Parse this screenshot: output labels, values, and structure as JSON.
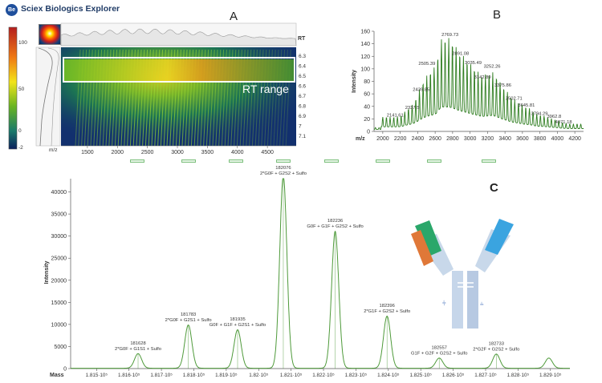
{
  "app": {
    "title": "Sciex Biologics Explorer",
    "logo_text": "Be"
  },
  "panels": {
    "a": "A",
    "b": "B",
    "c": "C"
  },
  "heatmap": {
    "color_scale_ticks": [
      "100",
      "50",
      "0",
      "-2"
    ],
    "rt_header": "RT",
    "mz_header": "m/z",
    "x_ticks": [
      "1500",
      "2000",
      "2500",
      "3000",
      "3500",
      "4000",
      "4500"
    ],
    "x_tick_values": [
      1500,
      2000,
      2500,
      3000,
      3500,
      4000,
      4500
    ],
    "x_range": [
      1060,
      4980
    ],
    "rt_ticks": [
      "6.3",
      "6.4",
      "6.5",
      "6.6",
      "6.7",
      "6.8",
      "6.9",
      "7",
      "7.1"
    ],
    "rt_range_label": "RT range"
  },
  "chart_data": [
    {
      "type": "line",
      "panel": "B",
      "title": "",
      "xlabel": "m/z",
      "ylabel": "Intensity",
      "xlim": [
        1900,
        4300
      ],
      "ylim": [
        0,
        160
      ],
      "x_ticks": [
        2000,
        2200,
        2400,
        2600,
        2800,
        3000,
        3200,
        3400,
        3600,
        3800,
        4000,
        4200
      ],
      "y_ticks": [
        0,
        20,
        40,
        60,
        80,
        100,
        120,
        140,
        160
      ],
      "color": "#2e7d1f",
      "labeled_peaks": [
        {
          "label": "2141.61",
          "x": 2141.61,
          "y": 21
        },
        {
          "label": "2337.5",
          "x": 2337.5,
          "y": 33
        },
        {
          "label": "2439.85",
          "x": 2439.85,
          "y": 62
        },
        {
          "label": "2505.39",
          "x": 2505.39,
          "y": 104
        },
        {
          "label": "2769.73",
          "x": 2769.73,
          "y": 150
        },
        {
          "label": "2891.08",
          "x": 2891.08,
          "y": 120
        },
        {
          "label": "3035.49",
          "x": 3035.49,
          "y": 105
        },
        {
          "label": "3142.89",
          "x": 3142.89,
          "y": 82
        },
        {
          "label": "3252.26",
          "x": 3252.26,
          "y": 99
        },
        {
          "label": "3375.86",
          "x": 3375.86,
          "y": 69
        },
        {
          "label": "3502.71",
          "x": 3502.71,
          "y": 48
        },
        {
          "label": "3645.81",
          "x": 3645.81,
          "y": 37
        },
        {
          "label": "3794.29",
          "x": 3794.29,
          "y": 24
        },
        {
          "label": "3962.8",
          "x": 3962.8,
          "y": 19
        },
        {
          "label": "4071.18",
          "x": 4071.18,
          "y": 10
        }
      ]
    },
    {
      "type": "line",
      "panel": "C",
      "title": "",
      "xlabel": "Mass",
      "ylabel": "Intensity",
      "xlim": [
        181420,
        182960
      ],
      "ylim": [
        0,
        43000
      ],
      "x_ticks": [
        {
          "value": 181500,
          "label": "1.815·10⁵"
        },
        {
          "value": 181600,
          "label": "1.816·10⁵"
        },
        {
          "value": 181700,
          "label": "1.817·10⁵"
        },
        {
          "value": 181800,
          "label": "1.818·10⁵"
        },
        {
          "value": 181900,
          "label": "1.819·10⁵"
        },
        {
          "value": 182000,
          "label": "1.82·10⁵"
        },
        {
          "value": 182100,
          "label": "1.821·10⁵"
        },
        {
          "value": 182200,
          "label": "1.822·10⁵"
        },
        {
          "value": 182300,
          "label": "1.823·10⁵"
        },
        {
          "value": 182400,
          "label": "1.824·10⁵"
        },
        {
          "value": 182500,
          "label": "1.825·10⁵"
        },
        {
          "value": 182600,
          "label": "1.826·10⁵"
        },
        {
          "value": 182700,
          "label": "1.827·10⁵"
        },
        {
          "value": 182800,
          "label": "1.828·10⁵"
        },
        {
          "value": 182900,
          "label": "1.829·10⁵"
        }
      ],
      "y_ticks": [
        0,
        5000,
        10000,
        15000,
        20000,
        25000,
        30000,
        35000,
        40000
      ],
      "color": "#4e9a3a",
      "peaks": [
        {
          "mass": 181628,
          "intensity": 3300,
          "label": "181628",
          "glycan": "2*G0F + G1S1 + Sulfo"
        },
        {
          "mass": 181783,
          "intensity": 9800,
          "label": "181783",
          "glycan": "2*G0F + G2S1 + Sulfo"
        },
        {
          "mass": 181935,
          "intensity": 8700,
          "label": "181935",
          "glycan": "G0F + G1F + G2S1 + Sulfo"
        },
        {
          "mass": 182076,
          "intensity": 43500,
          "label": "182076",
          "glycan": "2*G0F + G2S2 + Sulfo"
        },
        {
          "mass": 182236,
          "intensity": 31000,
          "label": "182236",
          "glycan": "G0F + G1F + G2S2 + Sulfo"
        },
        {
          "mass": 182396,
          "intensity": 11800,
          "label": "182396",
          "glycan": "2*G1F + G2S2 + Sulfo"
        },
        {
          "mass": 182557,
          "intensity": 2300,
          "label": "182557",
          "glycan": "G1F + G2F + G2S2 + Sulfo"
        },
        {
          "mass": 182733,
          "intensity": 3200,
          "label": "182733",
          "glycan": "2*G2F + G2S2 + Sulfo"
        },
        {
          "mass": 182895,
          "intensity": 2300,
          "label": "",
          "glycan": ""
        }
      ]
    }
  ]
}
